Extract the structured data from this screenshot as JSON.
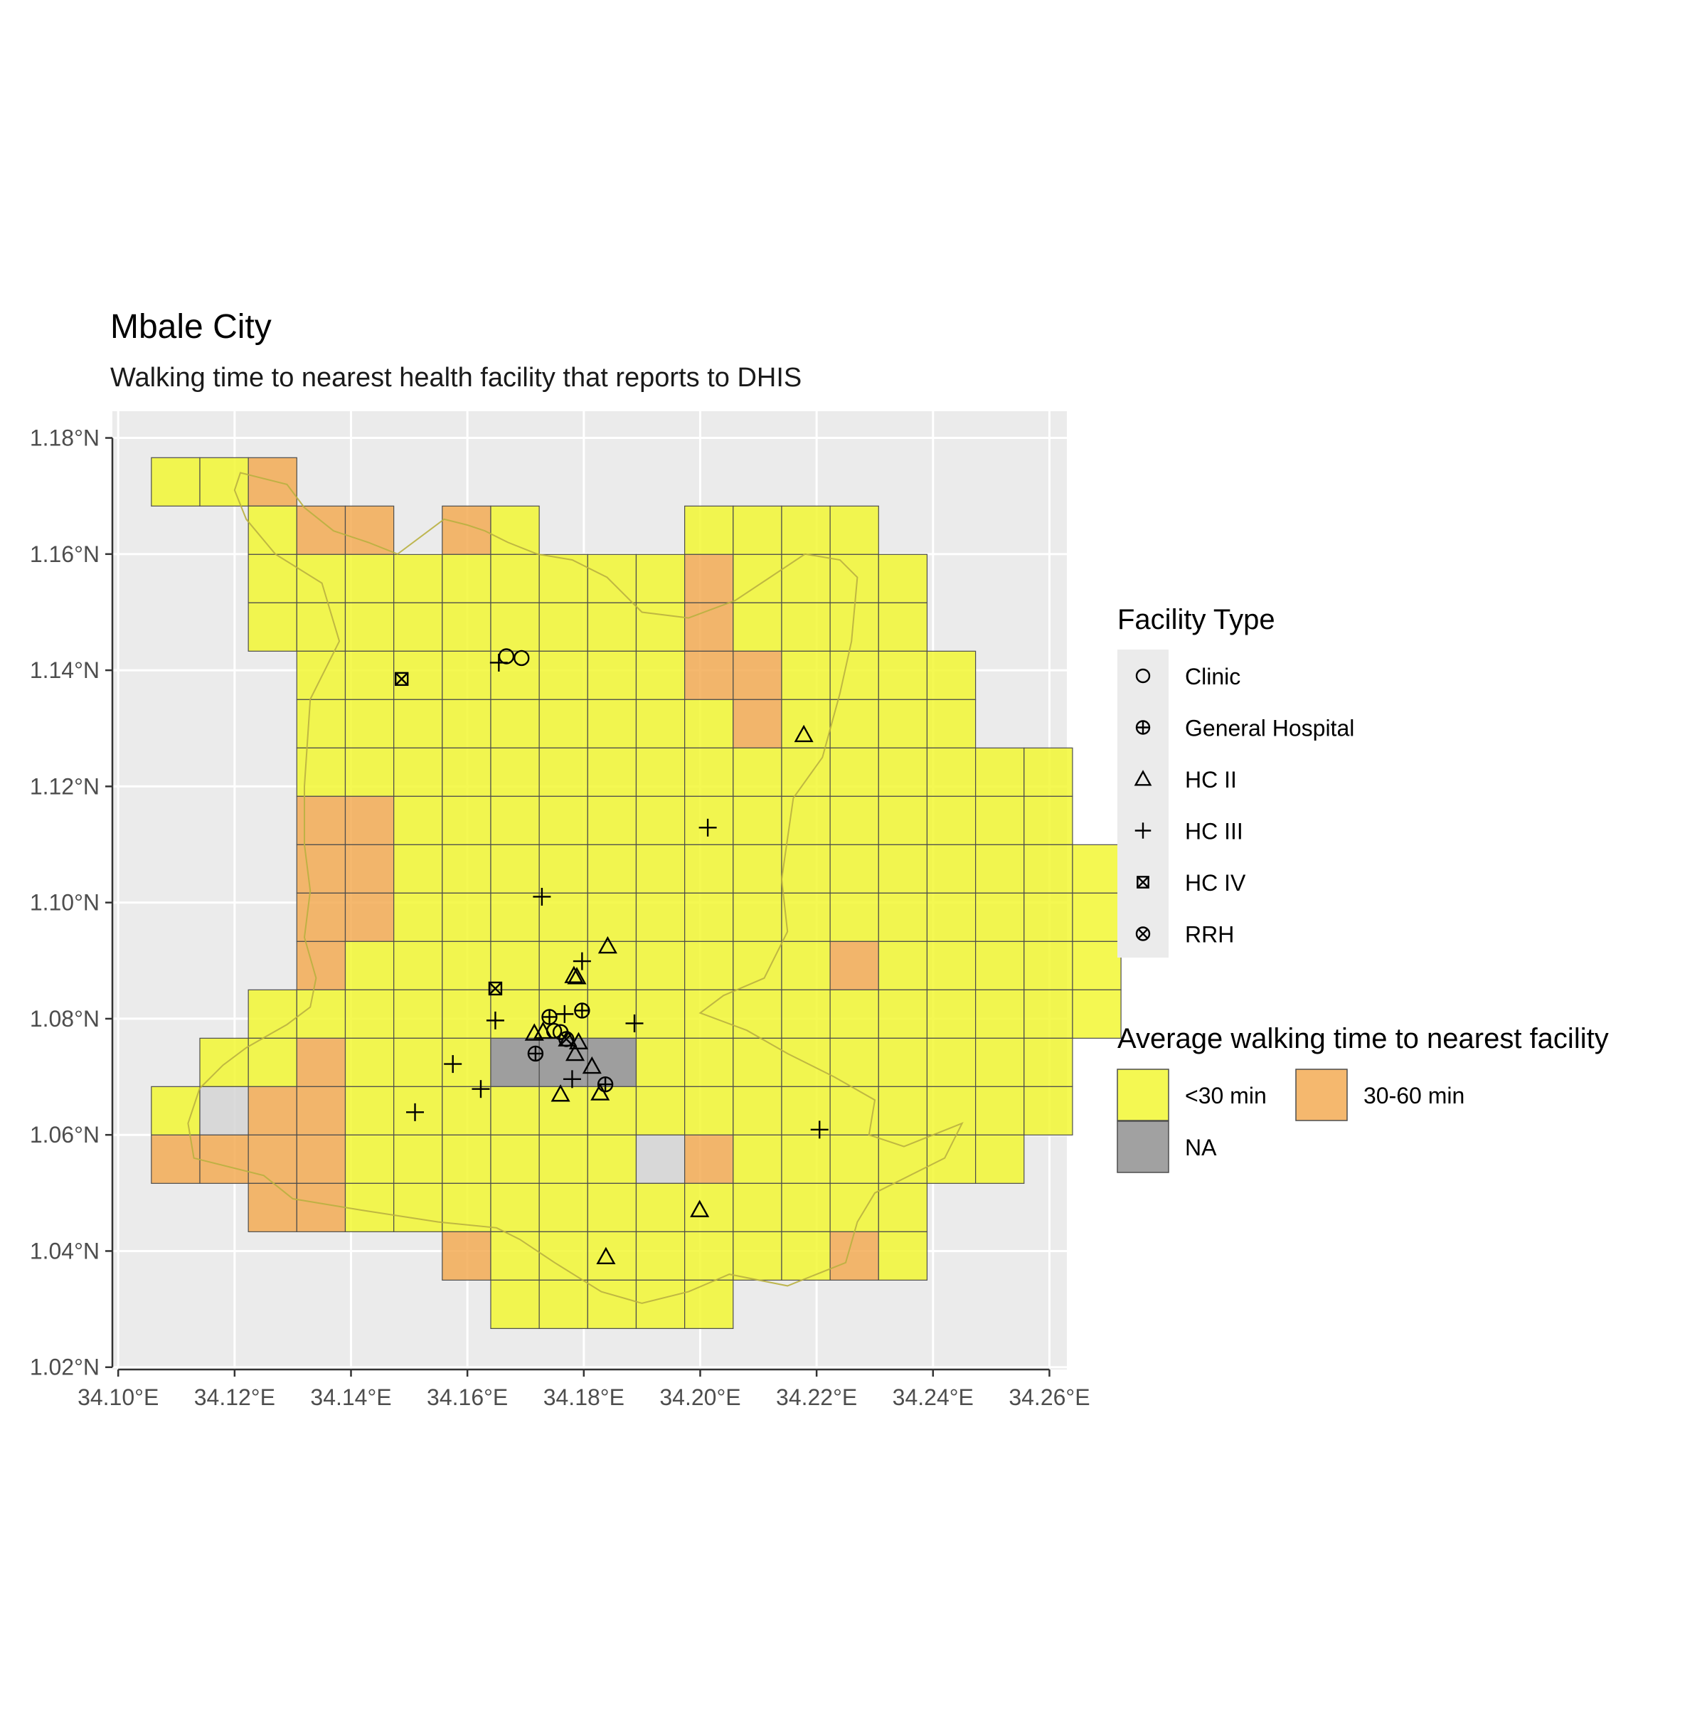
{
  "title": "Mbale City",
  "subtitle": "Walking time to nearest health facility that reports to DHIS",
  "x_ticks": [
    {
      "value": 34.1,
      "label": "34.10°E"
    },
    {
      "value": 34.12,
      "label": "34.12°E"
    },
    {
      "value": 34.14,
      "label": "34.14°E"
    },
    {
      "value": 34.16,
      "label": "34.16°E"
    },
    {
      "value": 34.18,
      "label": "34.18°E"
    },
    {
      "value": 34.2,
      "label": "34.20°E"
    },
    {
      "value": 34.22,
      "label": "34.22°E"
    },
    {
      "value": 34.24,
      "label": "34.24°E"
    },
    {
      "value": 34.26,
      "label": "34.26°E"
    }
  ],
  "y_ticks": [
    {
      "value": 1.02,
      "label": "1.02°N"
    },
    {
      "value": 1.04,
      "label": "1.04°N"
    },
    {
      "value": 1.06,
      "label": "1.06°N"
    },
    {
      "value": 1.08,
      "label": "1.08°N"
    },
    {
      "value": 1.1,
      "label": "1.10°N"
    },
    {
      "value": 1.12,
      "label": "1.12°N"
    },
    {
      "value": 1.14,
      "label": "1.14°N"
    },
    {
      "value": 1.16,
      "label": "1.16°N"
    },
    {
      "value": 1.18,
      "label": "1.18°N"
    }
  ],
  "colors": {
    "panel_bg": "#ebebeb",
    "grid": "#ffffff",
    "lt30": "#f2f72c",
    "h30_60": "#f3a84e",
    "na": "#8c8c8c",
    "na_light": "#d3d3d3",
    "cell_stroke": "#4d4d4d",
    "boundary": "#b9b040"
  },
  "chart_data": {
    "type": "map",
    "xlim": [
      34.099,
      34.263
    ],
    "ylim": [
      1.0196,
      1.1846
    ],
    "grid": true,
    "cell_grid": {
      "lon0": 34.1057,
      "lat0": 1.1766,
      "dlon": 0.00833,
      "dlat": 0.00833,
      "codes": "Y = <30 min, O = 30-60 min, N = NA, L = light grey, . = empty",
      "rows": [
        "YYO.................",
        "..YOO.OY...YYYY.....",
        "..YYYYYYYYYOYYYY....",
        "..YYYYYYYYYOYYYY....",
        "...YYYYYYYYOOYYYY...",
        "...YYYYYYYYYOYYYY...",
        "...YYYYYYYYYYYYYYYY.",
        "...OOYYYYYYYYYYYYYY.",
        "...OOYYYYYYYYYYYYYYY",
        "...OOYYYYYYYYYYYYYYY",
        "...OYYYYYYYYYYOYYYYY",
        "..YYYYYYYYYYYYYYYYYY",
        ".YYOYYYNNNYYYYYYYYY.",
        "YLOOYYYYYYYYYYYYYYY.",
        "OOOOYYYYYYLOYYYYYY..",
        "..OOYYYYYYYYYYYY....",
        "......OYYYYYYYOY....",
        ".......YYYYY........"
      ]
    },
    "boundary": [
      [
        34.121,
        1.174
      ],
      [
        34.129,
        1.172
      ],
      [
        34.132,
        1.168
      ],
      [
        34.137,
        1.164
      ],
      [
        34.143,
        1.162
      ],
      [
        34.148,
        1.16
      ],
      [
        34.152,
        1.163
      ],
      [
        34.156,
        1.166
      ],
      [
        34.16,
        1.165
      ],
      [
        34.163,
        1.164
      ],
      [
        34.167,
        1.162
      ],
      [
        34.172,
        1.16
      ],
      [
        34.178,
        1.159
      ],
      [
        34.184,
        1.156
      ],
      [
        34.19,
        1.15
      ],
      [
        34.198,
        1.149
      ],
      [
        34.206,
        1.152
      ],
      [
        34.212,
        1.156
      ],
      [
        34.218,
        1.16
      ],
      [
        34.224,
        1.159
      ],
      [
        34.227,
        1.156
      ],
      [
        34.226,
        1.145
      ],
      [
        34.224,
        1.136
      ],
      [
        34.221,
        1.125
      ],
      [
        34.216,
        1.118
      ],
      [
        34.214,
        1.104
      ],
      [
        34.215,
        1.095
      ],
      [
        34.211,
        1.087
      ],
      [
        34.204,
        1.084
      ],
      [
        34.2,
        1.081
      ],
      [
        34.208,
        1.078
      ],
      [
        34.215,
        1.074
      ],
      [
        34.223,
        1.07
      ],
      [
        34.23,
        1.066
      ],
      [
        34.229,
        1.06
      ],
      [
        34.235,
        1.058
      ],
      [
        34.245,
        1.062
      ],
      [
        34.242,
        1.056
      ],
      [
        34.23,
        1.05
      ],
      [
        34.227,
        1.045
      ],
      [
        34.225,
        1.038
      ],
      [
        34.215,
        1.034
      ],
      [
        34.205,
        1.036
      ],
      [
        34.198,
        1.033
      ],
      [
        34.19,
        1.031
      ],
      [
        34.183,
        1.033
      ],
      [
        34.175,
        1.038
      ],
      [
        34.169,
        1.042
      ],
      [
        34.165,
        1.044
      ],
      [
        34.155,
        1.045
      ],
      [
        34.142,
        1.047
      ],
      [
        34.13,
        1.049
      ],
      [
        34.125,
        1.053
      ],
      [
        34.113,
        1.056
      ],
      [
        34.112,
        1.062
      ],
      [
        34.114,
        1.068
      ],
      [
        34.118,
        1.072
      ],
      [
        34.122,
        1.075
      ],
      [
        34.129,
        1.079
      ],
      [
        34.133,
        1.082
      ],
      [
        34.134,
        1.087
      ],
      [
        34.132,
        1.094
      ],
      [
        34.133,
        1.102
      ],
      [
        34.132,
        1.11
      ],
      [
        34.132,
        1.12
      ],
      [
        34.133,
        1.135
      ],
      [
        34.138,
        1.145
      ],
      [
        34.135,
        1.155
      ],
      [
        34.127,
        1.16
      ],
      [
        34.122,
        1.166
      ],
      [
        34.12,
        1.171
      ],
      [
        34.121,
        1.174
      ]
    ],
    "facilities": [
      {
        "type": "Clinic",
        "lon": 34.1667,
        "lat": 1.1424
      },
      {
        "type": "Clinic",
        "lon": 34.1693,
        "lat": 1.1421
      },
      {
        "type": "Clinic",
        "lon": 34.1749,
        "lat": 1.0779
      },
      {
        "type": "Clinic",
        "lon": 34.176,
        "lat": 1.0777
      },
      {
        "type": "General Hospital",
        "lon": 34.1741,
        "lat": 1.0803
      },
      {
        "type": "General Hospital",
        "lon": 34.1797,
        "lat": 1.0814
      },
      {
        "type": "General Hospital",
        "lon": 34.1717,
        "lat": 1.074
      },
      {
        "type": "General Hospital",
        "lon": 34.1837,
        "lat": 1.0687
      },
      {
        "type": "HC II",
        "lon": 34.2178,
        "lat": 1.1289
      },
      {
        "type": "HC II",
        "lon": 34.1841,
        "lat": 1.0925
      },
      {
        "type": "HC II",
        "lon": 34.1783,
        "lat": 1.0874
      },
      {
        "type": "HC II",
        "lon": 34.1788,
        "lat": 1.0872
      },
      {
        "type": "HC II",
        "lon": 34.1715,
        "lat": 1.0775
      },
      {
        "type": "HC II",
        "lon": 34.173,
        "lat": 1.0778
      },
      {
        "type": "HC II",
        "lon": 34.1772,
        "lat": 1.0765
      },
      {
        "type": "HC II",
        "lon": 34.1791,
        "lat": 1.076
      },
      {
        "type": "HC II",
        "lon": 34.1785,
        "lat": 1.074
      },
      {
        "type": "HC II",
        "lon": 34.1814,
        "lat": 1.0718
      },
      {
        "type": "HC II",
        "lon": 34.176,
        "lat": 1.067
      },
      {
        "type": "HC II",
        "lon": 34.1828,
        "lat": 1.0672
      },
      {
        "type": "HC II",
        "lon": 34.1999,
        "lat": 1.0471
      },
      {
        "type": "HC II",
        "lon": 34.1838,
        "lat": 1.039
      },
      {
        "type": "HC III",
        "lon": 34.1654,
        "lat": 1.1413
      },
      {
        "type": "HC III",
        "lon": 34.2013,
        "lat": 1.1129
      },
      {
        "type": "HC III",
        "lon": 34.1728,
        "lat": 1.101
      },
      {
        "type": "HC III",
        "lon": 34.1797,
        "lat": 1.0899
      },
      {
        "type": "HC III",
        "lon": 34.1648,
        "lat": 1.0797
      },
      {
        "type": "HC III",
        "lon": 34.1767,
        "lat": 1.0808
      },
      {
        "type": "HC III",
        "lon": 34.1887,
        "lat": 1.0792
      },
      {
        "type": "HC III",
        "lon": 34.1575,
        "lat": 1.0722
      },
      {
        "type": "HC III",
        "lon": 34.1623,
        "lat": 1.0679
      },
      {
        "type": "HC III",
        "lon": 34.178,
        "lat": 1.0696
      },
      {
        "type": "HC III",
        "lon": 34.151,
        "lat": 1.0639
      },
      {
        "type": "HC III",
        "lon": 34.2205,
        "lat": 1.0609
      },
      {
        "type": "HC IV",
        "lon": 34.1487,
        "lat": 1.1385
      },
      {
        "type": "HC IV",
        "lon": 34.1648,
        "lat": 1.0852
      },
      {
        "type": "RRH",
        "lon": 34.177,
        "lat": 1.0765
      }
    ],
    "legend_placement": "right"
  },
  "legend": {
    "shape_title": "Facility Type",
    "shapes": [
      {
        "type": "Clinic",
        "label": "Clinic"
      },
      {
        "type": "General Hospital",
        "label": "General Hospital"
      },
      {
        "type": "HC II",
        "label": "HC II"
      },
      {
        "type": "HC III",
        "label": "HC III"
      },
      {
        "type": "HC IV",
        "label": "HC IV"
      },
      {
        "type": "RRH",
        "label": "RRH"
      }
    ],
    "fill_title": "Average walking time to nearest facility",
    "fills": [
      {
        "key": "lt30",
        "label": "<30 min"
      },
      {
        "key": "h30_60",
        "label": "30-60 min"
      },
      {
        "key": "na",
        "label": "NA"
      }
    ]
  }
}
